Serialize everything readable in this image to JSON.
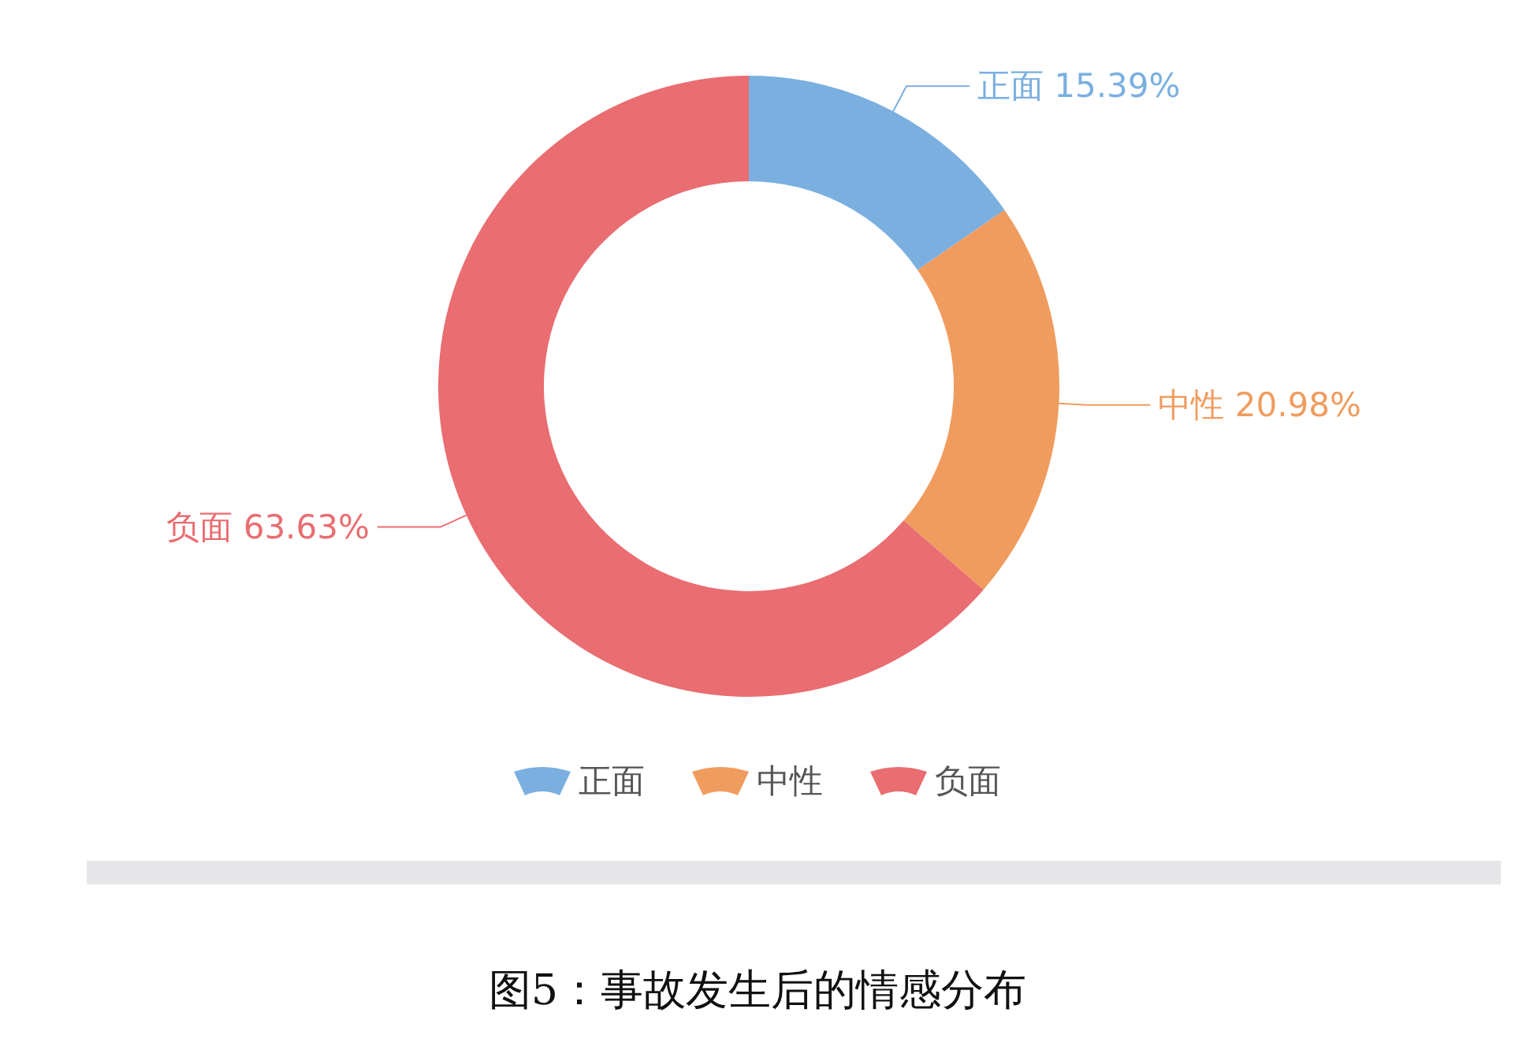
{
  "chart_data": {
    "type": "donut",
    "title": "图5：事故发生后的情感分布",
    "categories": [
      "正面",
      "中性",
      "负面"
    ],
    "values": [
      15.39,
      20.98,
      63.63
    ],
    "colors": [
      "#7aafe0",
      "#f09c5f",
      "#e96d71"
    ],
    "value_labels": [
      "15.39%",
      "20.98%",
      "63.63%"
    ],
    "legend": "bottom"
  }
}
